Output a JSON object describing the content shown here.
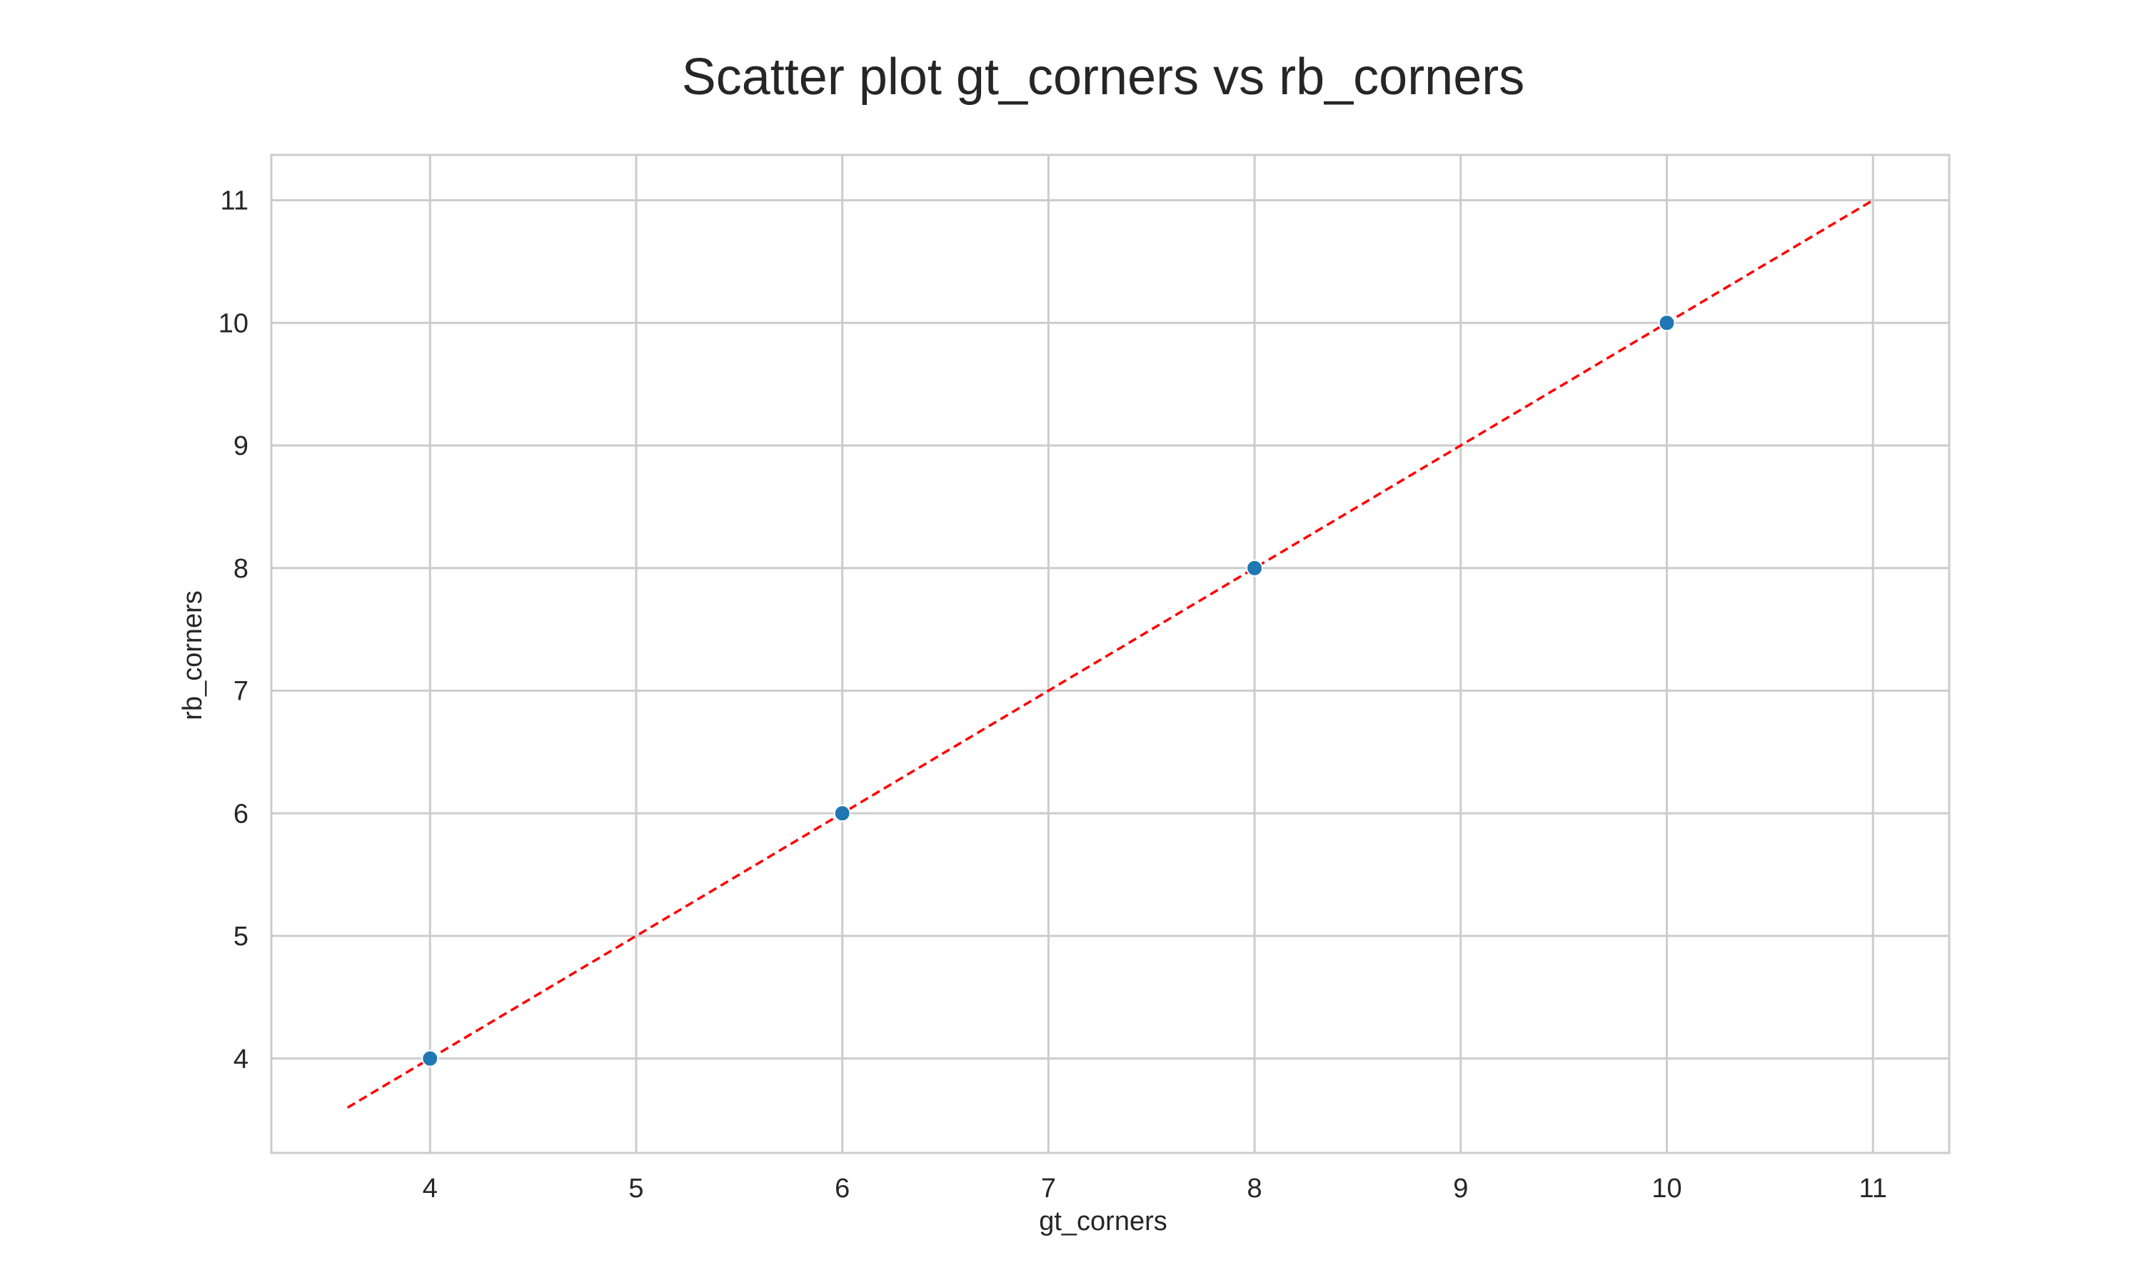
{
  "chart_data": {
    "type": "scatter",
    "title": "Scatter plot gt_corners vs rb_corners",
    "xlabel": "gt_corners",
    "ylabel": "rb_corners",
    "xlim": [
      3.23,
      11.37
    ],
    "ylim": [
      3.23,
      11.37
    ],
    "x_ticks": [
      4,
      5,
      6,
      7,
      8,
      9,
      10,
      11
    ],
    "y_ticks": [
      4,
      5,
      6,
      7,
      8,
      9,
      10,
      11
    ],
    "grid": true,
    "series": [
      {
        "color": "#1f77b4",
        "points": [
          {
            "x": 4,
            "y": 4
          },
          {
            "x": 6,
            "y": 6
          },
          {
            "x": 8,
            "y": 8
          },
          {
            "x": 10,
            "y": 10
          }
        ]
      }
    ],
    "reference_line": {
      "style": "dashed",
      "color": "#ff0000",
      "from": {
        "x": 3.6,
        "y": 3.6
      },
      "to": {
        "x": 11,
        "y": 11
      }
    }
  }
}
